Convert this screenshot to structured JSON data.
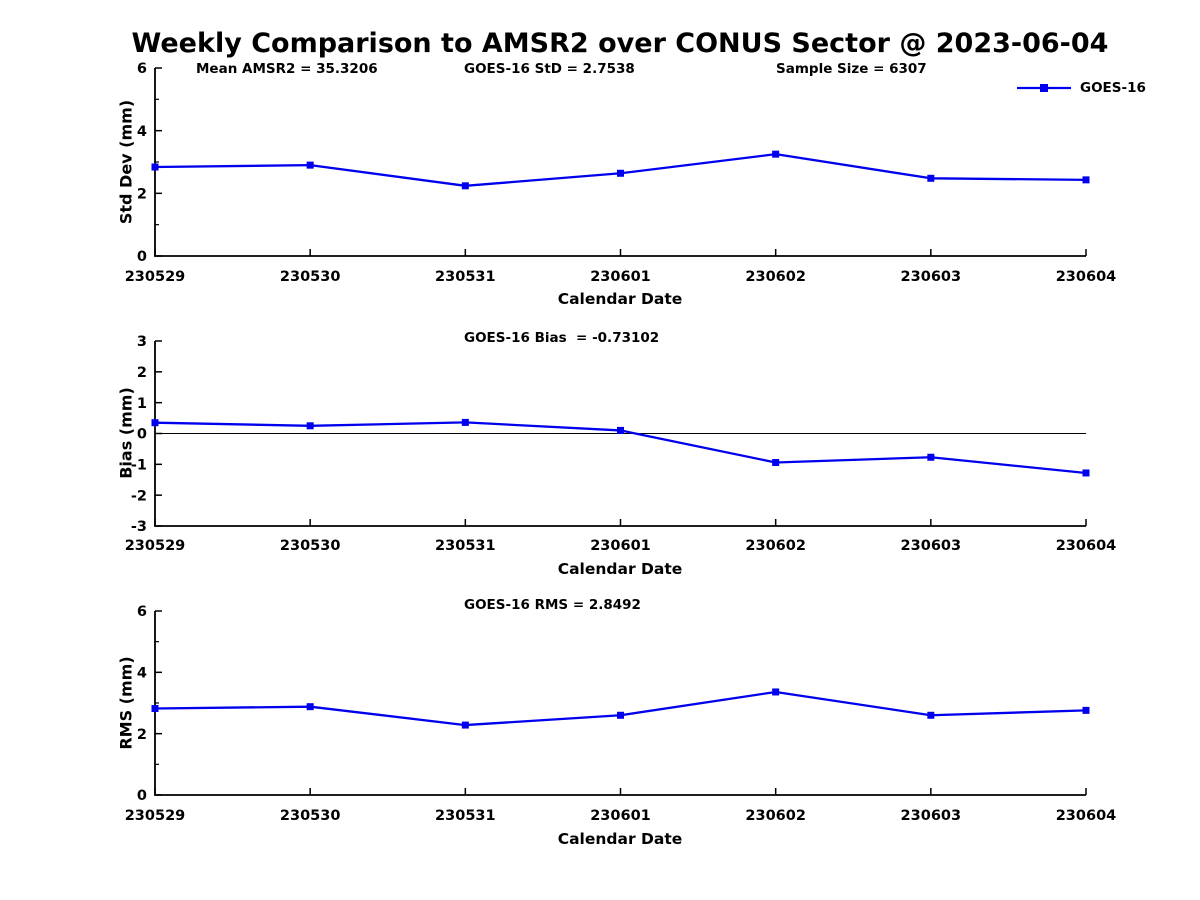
{
  "title": "Weekly Comparison to AMSR2 over CONUS Sector @ 2023-06-04",
  "accent_color": "#0000EE",
  "chart_data": [
    {
      "type": "line",
      "id": "std-dev",
      "categories": [
        "230529",
        "230530",
        "230531",
        "230601",
        "230602",
        "230603",
        "230604"
      ],
      "series": [
        {
          "name": "GOES-16",
          "color": "#0000EE",
          "marker": "square",
          "values": [
            2.84,
            2.9,
            2.24,
            2.64,
            3.25,
            2.48,
            2.43
          ]
        }
      ],
      "annotations": [
        "Mean AMSR2 = 35.3206",
        "GOES-16 StD = 2.7538",
        "Sample Size = 6307"
      ],
      "xlabel": "Calendar Date",
      "ylabel": "Std Dev (mm)",
      "ylim": [
        0,
        6
      ],
      "yticks": [
        0,
        2,
        4,
        6
      ],
      "yminorticks": [
        1,
        3,
        5
      ],
      "zero_line": false,
      "grid": false,
      "legend": {
        "label": "GOES-16",
        "position": "top-right"
      }
    },
    {
      "type": "line",
      "id": "bias",
      "categories": [
        "230529",
        "230530",
        "230531",
        "230601",
        "230602",
        "230603",
        "230604"
      ],
      "series": [
        {
          "name": "GOES-16",
          "color": "#0000EE",
          "marker": "square",
          "values": [
            0.35,
            0.25,
            0.36,
            0.1,
            -0.94,
            -0.77,
            -1.28
          ]
        }
      ],
      "annotations": [
        "GOES-16 Bias  = -0.73102"
      ],
      "xlabel": "Calendar Date",
      "ylabel": "Bias (mm)",
      "ylim": [
        -3,
        3
      ],
      "yticks": [
        -3,
        -2,
        -1,
        0,
        1,
        2,
        3
      ],
      "yminorticks": [],
      "zero_line": true,
      "grid": false
    },
    {
      "type": "line",
      "id": "rms",
      "categories": [
        "230529",
        "230530",
        "230531",
        "230601",
        "230602",
        "230603",
        "230604"
      ],
      "series": [
        {
          "name": "GOES-16",
          "color": "#0000EE",
          "marker": "square",
          "values": [
            2.82,
            2.88,
            2.28,
            2.6,
            3.36,
            2.6,
            2.76
          ]
        }
      ],
      "annotations": [
        "GOES-16 RMS = 2.8492"
      ],
      "xlabel": "Calendar Date",
      "ylabel": "RMS (mm)",
      "ylim": [
        0,
        6
      ],
      "yticks": [
        0,
        2,
        4,
        6
      ],
      "yminorticks": [
        1,
        3,
        5
      ],
      "zero_line": false,
      "grid": false
    }
  ]
}
